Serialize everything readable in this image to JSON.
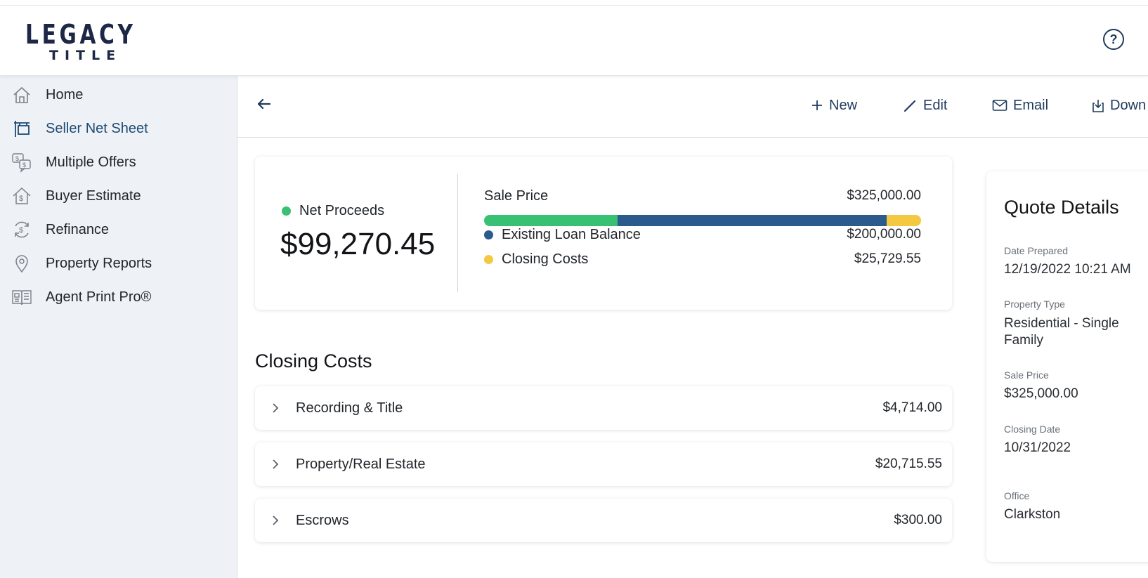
{
  "brand": {
    "line1": "LEGACY",
    "line2": "TITLE",
    "colors": {
      "navy": "#1d2746",
      "accent": "#1e4a72"
    }
  },
  "header": {
    "help_icon": "question-circle-icon",
    "help_glyph": "?"
  },
  "sidebar": {
    "items": [
      {
        "label": "Home",
        "icon": "home-icon",
        "active": false
      },
      {
        "label": "Seller Net Sheet",
        "icon": "sign-post-icon",
        "active": true
      },
      {
        "label": "Multiple Offers",
        "icon": "dollar-bubbles-icon",
        "active": false
      },
      {
        "label": "Buyer Estimate",
        "icon": "house-dollar-icon",
        "active": false
      },
      {
        "label": "Refinance",
        "icon": "refresh-dollar-icon",
        "active": false
      },
      {
        "label": "Property Reports",
        "icon": "map-pin-icon",
        "active": false
      },
      {
        "label": "Agent Print Pro®",
        "icon": "newspaper-icon",
        "active": false
      }
    ]
  },
  "toolbar": {
    "back_icon": "arrow-left-icon",
    "new_label": "New",
    "edit_label": "Edit",
    "email_label": "Email",
    "download_label": "Down"
  },
  "summary": {
    "net_label": "Net Proceeds",
    "net_value": "$99,270.45",
    "sale_price_label": "Sale Price",
    "sale_price_value": "$325,000.00",
    "loan_label": "Existing Loan Balance",
    "loan_value": "$200,000.00",
    "closing_label": "Closing Costs",
    "closing_value": "$25,729.55",
    "bar_fractions": {
      "net": 0.3054,
      "loan": 0.6154,
      "closing": 0.0792
    },
    "colors": {
      "net": "#38c172",
      "loan": "#2a5b8c",
      "closing": "#f5c842"
    }
  },
  "closing_costs": {
    "title": "Closing Costs",
    "rows": [
      {
        "label": "Recording & Title",
        "value": "$4,714.00"
      },
      {
        "label": "Property/Real Estate",
        "value": "$20,715.55"
      },
      {
        "label": "Escrows",
        "value": "$300.00"
      }
    ]
  },
  "quote": {
    "title": "Quote Details",
    "date_label": "Date Prepared",
    "date_value": "12/19/2022 10:21 AM",
    "type_label": "Property Type",
    "type_value": "Residential - Single Family",
    "sale_label": "Sale Price",
    "sale_value": "$325,000.00",
    "closing_label": "Closing Date",
    "closing_value": "10/31/2022",
    "office_label": "Office",
    "office_value": "Clarkston"
  }
}
